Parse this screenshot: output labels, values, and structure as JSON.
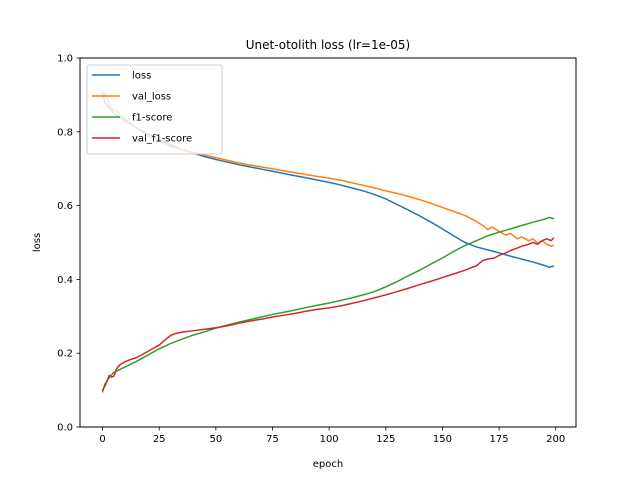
{
  "chart_data": {
    "type": "line",
    "title": "Unet-otolith loss (lr=1e-05)",
    "xlabel": "epoch",
    "ylabel": "loss",
    "xlim": [
      -9.95,
      208.95
    ],
    "ylim": [
      0.0,
      1.0
    ],
    "xticks": [
      0,
      25,
      50,
      75,
      100,
      125,
      150,
      175,
      200
    ],
    "yticks": [
      0.0,
      0.2,
      0.4,
      0.6,
      0.8,
      1.0
    ],
    "xtick_labels": [
      "0",
      "25",
      "50",
      "75",
      "100",
      "125",
      "150",
      "175",
      "200"
    ],
    "ytick_labels": [
      "0.0",
      "0.2",
      "0.4",
      "0.6",
      "0.8",
      "1.0"
    ],
    "grid": false,
    "legend_position": "upper-left",
    "series": [
      {
        "name": "loss",
        "color": "#1f77b4",
        "x": [
          0,
          1,
          3,
          5,
          10,
          15,
          20,
          25,
          30,
          35,
          40,
          45,
          50,
          55,
          60,
          65,
          70,
          75,
          80,
          85,
          90,
          95,
          100,
          105,
          110,
          115,
          120,
          125,
          130,
          135,
          140,
          145,
          150,
          155,
          160,
          165,
          170,
          175,
          180,
          185,
          190,
          195,
          197,
          199
        ],
        "y": [
          0.9,
          0.88,
          0.865,
          0.85,
          0.83,
          0.81,
          0.795,
          0.78,
          0.765,
          0.752,
          0.742,
          0.733,
          0.725,
          0.718,
          0.711,
          0.705,
          0.699,
          0.693,
          0.687,
          0.681,
          0.675,
          0.669,
          0.663,
          0.656,
          0.648,
          0.64,
          0.63,
          0.618,
          0.603,
          0.588,
          0.572,
          0.555,
          0.537,
          0.518,
          0.5,
          0.488,
          0.48,
          0.472,
          0.463,
          0.455,
          0.447,
          0.438,
          0.433,
          0.436
        ]
      },
      {
        "name": "val_loss",
        "color": "#ff7f0e",
        "x": [
          0,
          1,
          2,
          3,
          4,
          5,
          6,
          8,
          10,
          15,
          20,
          25,
          30,
          35,
          40,
          45,
          50,
          55,
          60,
          65,
          70,
          75,
          80,
          85,
          90,
          95,
          100,
          105,
          110,
          115,
          120,
          125,
          130,
          135,
          140,
          145,
          150,
          155,
          160,
          165,
          168,
          170,
          172,
          175,
          178,
          180,
          183,
          185,
          188,
          190,
          192,
          194,
          196,
          198,
          199
        ],
        "y": [
          0.91,
          0.9,
          0.89,
          0.875,
          0.862,
          0.86,
          0.858,
          0.845,
          0.835,
          0.81,
          0.79,
          0.775,
          0.76,
          0.752,
          0.744,
          0.737,
          0.73,
          0.723,
          0.716,
          0.71,
          0.705,
          0.7,
          0.694,
          0.689,
          0.684,
          0.679,
          0.674,
          0.669,
          0.662,
          0.655,
          0.648,
          0.64,
          0.633,
          0.625,
          0.616,
          0.606,
          0.595,
          0.584,
          0.573,
          0.557,
          0.545,
          0.535,
          0.542,
          0.53,
          0.52,
          0.525,
          0.51,
          0.515,
          0.505,
          0.51,
          0.498,
          0.505,
          0.495,
          0.49,
          0.492
        ]
      },
      {
        "name": "f1-score",
        "color": "#2ca02c",
        "x": [
          0,
          1,
          3,
          5,
          10,
          15,
          20,
          25,
          30,
          35,
          40,
          45,
          50,
          55,
          60,
          65,
          70,
          75,
          80,
          85,
          90,
          95,
          100,
          105,
          110,
          115,
          120,
          125,
          130,
          135,
          140,
          145,
          150,
          155,
          160,
          165,
          170,
          175,
          180,
          185,
          190,
          195,
          197,
          199
        ],
        "y": [
          0.095,
          0.115,
          0.135,
          0.148,
          0.163,
          0.178,
          0.195,
          0.212,
          0.226,
          0.238,
          0.249,
          0.258,
          0.268,
          0.276,
          0.284,
          0.291,
          0.298,
          0.305,
          0.311,
          0.317,
          0.324,
          0.33,
          0.336,
          0.343,
          0.35,
          0.358,
          0.367,
          0.38,
          0.394,
          0.41,
          0.425,
          0.442,
          0.458,
          0.476,
          0.492,
          0.505,
          0.518,
          0.528,
          0.537,
          0.546,
          0.555,
          0.563,
          0.568,
          0.565
        ]
      },
      {
        "name": "val_f1-score",
        "color": "#d62728",
        "x": [
          0,
          1,
          3,
          4,
          5,
          6,
          7,
          8,
          10,
          12,
          15,
          20,
          25,
          28,
          30,
          32,
          35,
          40,
          45,
          50,
          55,
          60,
          65,
          70,
          75,
          80,
          85,
          90,
          95,
          100,
          105,
          110,
          115,
          120,
          125,
          130,
          135,
          140,
          145,
          150,
          155,
          160,
          165,
          168,
          170,
          173,
          175,
          178,
          180,
          183,
          185,
          188,
          190,
          192,
          194,
          196,
          198,
          199
        ],
        "y": [
          0.1,
          0.11,
          0.14,
          0.135,
          0.138,
          0.155,
          0.165,
          0.17,
          0.177,
          0.182,
          0.188,
          0.205,
          0.222,
          0.238,
          0.248,
          0.253,
          0.257,
          0.261,
          0.265,
          0.269,
          0.274,
          0.281,
          0.287,
          0.292,
          0.298,
          0.303,
          0.308,
          0.314,
          0.319,
          0.323,
          0.328,
          0.335,
          0.342,
          0.35,
          0.358,
          0.367,
          0.376,
          0.386,
          0.395,
          0.405,
          0.415,
          0.425,
          0.437,
          0.452,
          0.455,
          0.458,
          0.465,
          0.472,
          0.478,
          0.485,
          0.49,
          0.495,
          0.5,
          0.495,
          0.505,
          0.51,
          0.505,
          0.512
        ]
      }
    ]
  }
}
